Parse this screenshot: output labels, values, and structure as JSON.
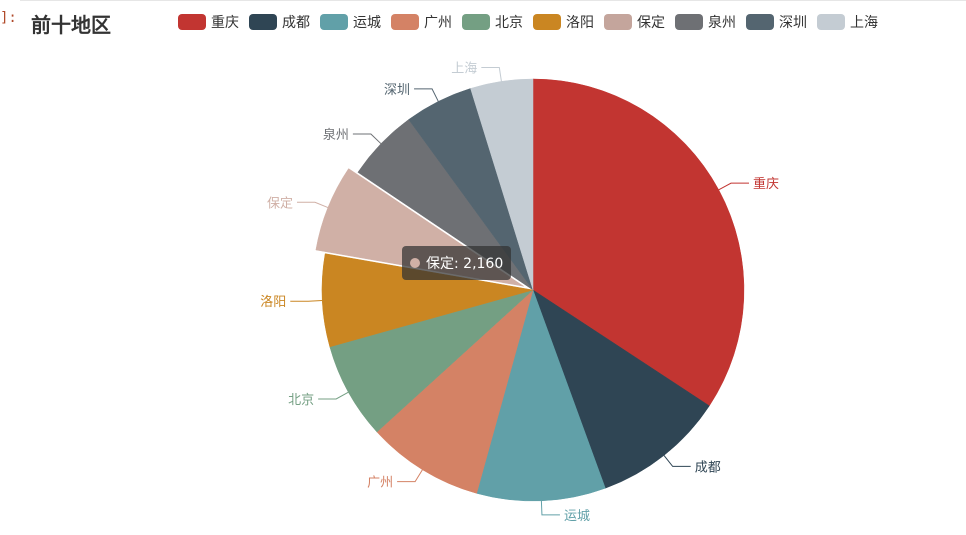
{
  "prompt_mark": "]:",
  "chart_data": {
    "type": "pie",
    "title": "前十地区",
    "legend_position": "top",
    "slices": [
      {
        "name": "重庆",
        "value": 11100,
        "color": "#c23531"
      },
      {
        "name": "成都",
        "value": 3300,
        "color": "#2f4554"
      },
      {
        "name": "运城",
        "value": 3200,
        "color": "#61a0a8"
      },
      {
        "name": "广州",
        "value": 2900,
        "color": "#d48265"
      },
      {
        "name": "北京",
        "value": 2400,
        "color": "#749f83"
      },
      {
        "name": "洛阳",
        "value": 2300,
        "color": "#ca8622"
      },
      {
        "name": "保定",
        "value": 2160,
        "color": "#d0b0a6",
        "legend_color": "#c4a59c"
      },
      {
        "name": "泉州",
        "value": 1800,
        "color": "#6e7074"
      },
      {
        "name": "深圳",
        "value": 1700,
        "color": "#546570"
      },
      {
        "name": "上海",
        "value": 1550,
        "color": "#c4ccd3"
      }
    ],
    "tooltip": {
      "name": "保定",
      "text": "保定: 2,160",
      "color": "#d0b0a6"
    }
  }
}
